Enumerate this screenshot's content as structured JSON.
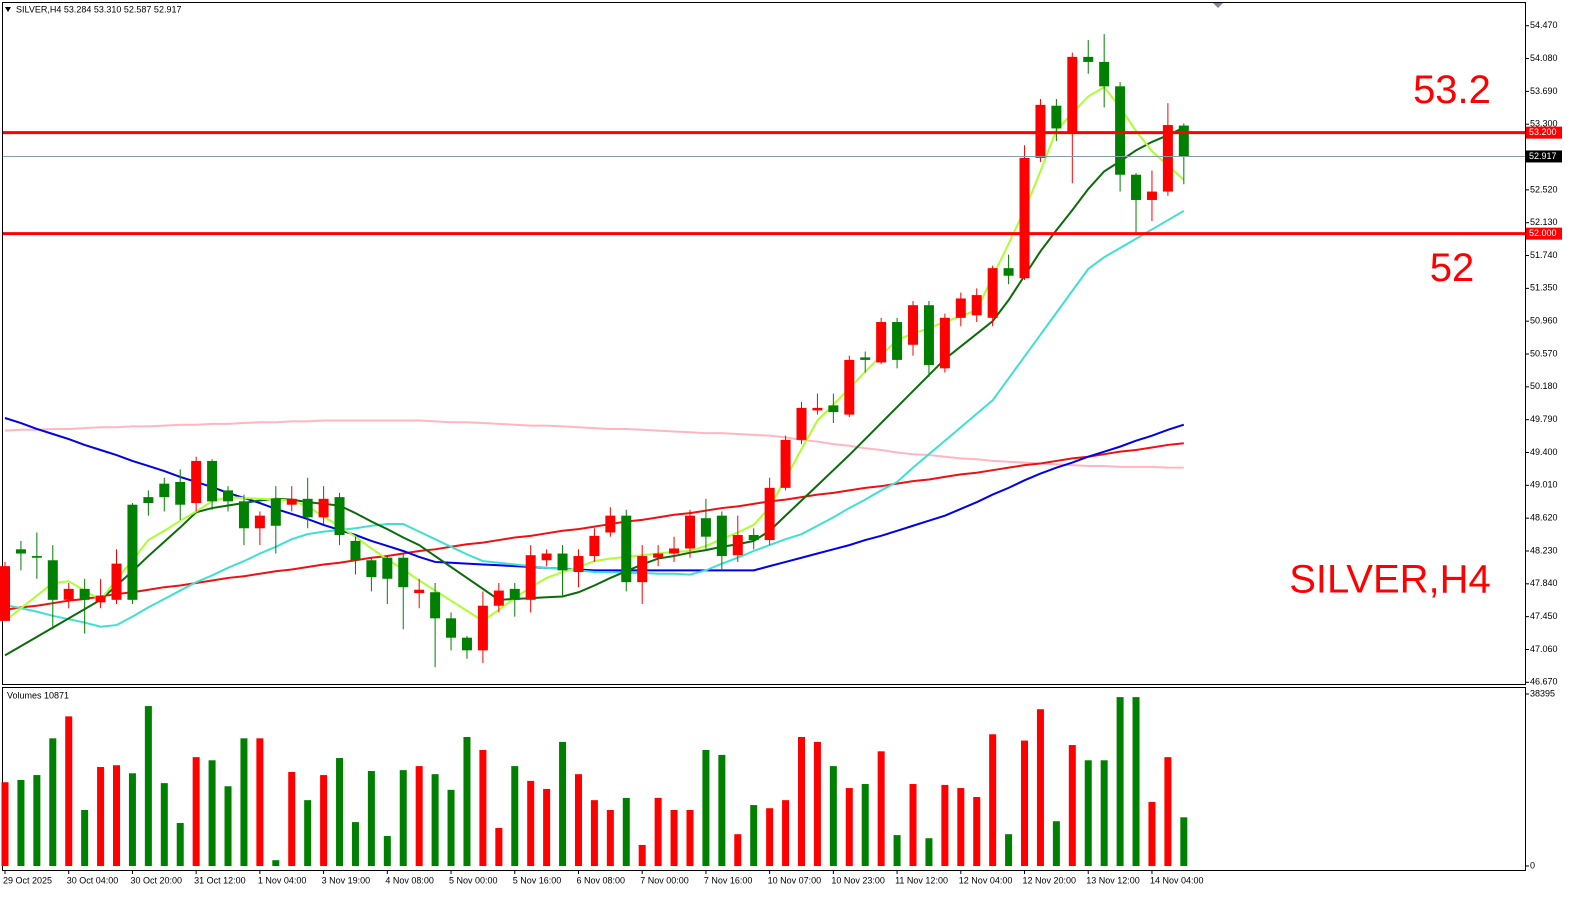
{
  "chart_data": [
    {
      "type": "candlestick",
      "header": "SILVER,H4  53.284 53.310 52.587 52.917",
      "symbol_label": "SILVER,H4",
      "categories": [
        "29 Oct 2025",
        null,
        null,
        null,
        "30 Oct 04:00",
        null,
        null,
        null,
        "30 Oct 20:00",
        null,
        null,
        null,
        "31 Oct 12:00",
        null,
        null,
        null,
        "1 Nov 04:00",
        null,
        null,
        null,
        "3 Nov 19:00",
        null,
        null,
        null,
        "4 Nov 08:00",
        null,
        null,
        null,
        "5 Nov 00:00",
        null,
        null,
        null,
        "5 Nov 16:00",
        null,
        null,
        null,
        "6 Nov 08:00",
        null,
        null,
        null,
        "7 Nov 00:00",
        null,
        null,
        null,
        "7 Nov 16:00",
        null,
        null,
        null,
        "10 Nov 07:00",
        null,
        null,
        null,
        "10 Nov 23:00",
        null,
        null,
        null,
        "11 Nov 12:00",
        null,
        null,
        null,
        "12 Nov 04:00",
        null,
        null,
        null,
        "12 Nov 20:00",
        null,
        null,
        null,
        "13 Nov 12:00",
        null,
        null,
        null,
        "14 Nov 04:00",
        null,
        null
      ],
      "open": [
        47.4,
        48.25,
        48.17,
        48.12,
        47.65,
        47.78,
        47.62,
        47.65,
        48.78,
        48.87,
        49.03,
        49.05,
        48.8,
        49.3,
        48.95,
        48.82,
        48.5,
        48.85,
        48.78,
        48.85,
        48.63,
        48.87,
        48.35,
        48.12,
        48.15,
        48.15,
        47.73,
        47.74,
        47.43,
        47.2,
        47.05,
        47.58,
        47.78,
        47.65,
        48.12,
        48.2,
        47.98,
        48.17,
        48.45,
        48.65,
        47.86,
        48.15,
        48.2,
        48.26,
        48.62,
        48.65,
        48.18,
        48.42,
        48.36,
        48.98,
        49.55,
        49.9,
        49.96,
        49.85,
        50.53,
        50.47,
        50.95,
        50.68,
        51.15,
        50.4,
        51.0,
        51.03,
        51.0,
        51.59,
        51.47,
        52.9,
        53.52,
        53.2,
        54.1,
        54.04,
        53.75,
        52.7,
        52.4,
        52.5,
        53.284
      ],
      "high": [
        48.1,
        48.35,
        48.45,
        48.3,
        47.85,
        47.9,
        47.9,
        48.25,
        48.8,
        48.95,
        49.1,
        49.2,
        49.35,
        49.32,
        49.0,
        48.9,
        48.7,
        49.0,
        49.0,
        49.1,
        49.0,
        48.92,
        48.4,
        48.15,
        48.18,
        48.2,
        47.9,
        47.85,
        47.5,
        47.22,
        47.75,
        47.85,
        47.85,
        48.3,
        48.25,
        48.3,
        48.25,
        48.5,
        48.75,
        48.72,
        48.3,
        48.3,
        48.4,
        48.72,
        48.85,
        48.7,
        48.65,
        48.5,
        49.1,
        49.6,
        50.0,
        50.1,
        50.1,
        50.55,
        50.6,
        51.0,
        51.0,
        51.2,
        51.2,
        51.05,
        51.3,
        51.35,
        51.62,
        51.75,
        53.05,
        53.6,
        53.6,
        54.15,
        54.3,
        54.37,
        53.8,
        52.72,
        52.75,
        53.55,
        53.31
      ],
      "low": [
        47.4,
        48.0,
        47.9,
        47.3,
        47.55,
        47.25,
        47.55,
        47.6,
        47.6,
        48.65,
        48.7,
        48.6,
        48.7,
        48.72,
        48.7,
        48.3,
        48.3,
        48.2,
        48.7,
        48.5,
        48.55,
        48.3,
        47.95,
        47.75,
        47.6,
        47.3,
        47.55,
        46.85,
        47.05,
        46.95,
        46.9,
        47.5,
        47.45,
        47.5,
        48.05,
        47.7,
        47.8,
        48.1,
        48.4,
        47.75,
        47.6,
        48.05,
        48.1,
        48.15,
        48.25,
        48.0,
        48.1,
        48.25,
        48.3,
        48.95,
        49.5,
        49.85,
        49.75,
        49.82,
        50.35,
        50.45,
        50.4,
        50.55,
        50.3,
        50.35,
        50.9,
        50.95,
        50.9,
        51.4,
        51.45,
        52.85,
        53.1,
        52.6,
        53.9,
        53.5,
        52.5,
        52.0,
        52.15,
        52.45,
        52.587
      ],
      "close": [
        48.05,
        48.2,
        48.15,
        47.65,
        47.78,
        47.65,
        47.7,
        48.08,
        47.65,
        48.8,
        48.87,
        48.78,
        49.3,
        48.82,
        48.82,
        48.5,
        48.65,
        48.53,
        48.85,
        48.63,
        48.85,
        48.42,
        48.12,
        47.92,
        47.9,
        47.8,
        47.77,
        47.43,
        47.2,
        47.05,
        47.58,
        47.76,
        47.65,
        48.18,
        48.2,
        48.0,
        48.17,
        48.41,
        48.65,
        47.86,
        48.17,
        48.2,
        48.26,
        48.65,
        48.4,
        48.17,
        48.42,
        48.36,
        48.98,
        49.55,
        49.93,
        49.93,
        49.88,
        50.5,
        50.5,
        50.95,
        50.5,
        51.15,
        50.44,
        51.0,
        51.23,
        51.27,
        51.59,
        51.5,
        52.9,
        53.53,
        53.25,
        54.1,
        54.04,
        53.75,
        52.7,
        52.4,
        52.5,
        53.29,
        52.917
      ],
      "up_color": "#ff0000",
      "down_color": "#008000",
      "moving_averages": [
        {
          "color": "#ffb6c1",
          "values": [
            49.66,
            49.67,
            49.67,
            49.68,
            49.68,
            49.69,
            49.7,
            49.7,
            49.71,
            49.71,
            49.72,
            49.73,
            49.73,
            49.74,
            49.74,
            49.75,
            49.76,
            49.76,
            49.77,
            49.77,
            49.78,
            49.78,
            49.78,
            49.78,
            49.78,
            49.78,
            49.78,
            49.77,
            49.76,
            49.76,
            49.75,
            49.74,
            49.73,
            49.72,
            49.72,
            49.71,
            49.7,
            49.69,
            49.68,
            49.68,
            49.67,
            49.66,
            49.65,
            49.64,
            49.63,
            49.63,
            49.62,
            49.61,
            49.6,
            49.58,
            49.55,
            49.53,
            49.5,
            49.48,
            49.45,
            49.43,
            49.4,
            49.38,
            49.37,
            49.35,
            49.33,
            49.32,
            49.3,
            49.29,
            49.28,
            49.27,
            49.26,
            49.25,
            49.24,
            49.24,
            49.23,
            49.23,
            49.23,
            49.22,
            49.22
          ]
        },
        {
          "color": "#ee1111",
          "values": [
            47.53,
            47.56,
            47.58,
            47.61,
            47.64,
            47.66,
            47.69,
            47.72,
            47.74,
            47.77,
            47.8,
            47.82,
            47.85,
            47.88,
            47.91,
            47.93,
            47.96,
            47.99,
            48.01,
            48.04,
            48.07,
            48.09,
            48.12,
            48.15,
            48.17,
            48.2,
            48.23,
            48.25,
            48.28,
            48.31,
            48.33,
            48.36,
            48.39,
            48.41,
            48.44,
            48.47,
            48.49,
            48.52,
            48.55,
            48.58,
            48.6,
            48.63,
            48.66,
            48.68,
            48.71,
            48.74,
            48.76,
            48.79,
            48.82,
            48.84,
            48.87,
            48.9,
            48.92,
            48.95,
            48.98,
            49.0,
            49.03,
            49.06,
            49.08,
            49.11,
            49.14,
            49.16,
            49.19,
            49.22,
            49.25,
            49.27,
            49.3,
            49.33,
            49.35,
            49.38,
            49.41,
            49.43,
            49.46,
            49.49,
            49.51
          ]
        },
        {
          "color": "#0000ee",
          "values": [
            49.81,
            49.75,
            49.68,
            49.62,
            49.56,
            49.49,
            49.43,
            49.37,
            49.3,
            49.24,
            49.18,
            49.11,
            49.05,
            48.99,
            48.92,
            48.86,
            48.8,
            48.73,
            48.67,
            48.61,
            48.54,
            48.48,
            48.42,
            48.35,
            48.29,
            48.23,
            48.16,
            48.1,
            48.09,
            48.08,
            48.07,
            48.06,
            48.05,
            48.04,
            48.03,
            48.02,
            48.01,
            48.0,
            48.0,
            48.0,
            48.0,
            48.0,
            48.0,
            48.0,
            48.0,
            48.0,
            48.0,
            48.0,
            48.05,
            48.1,
            48.15,
            48.2,
            48.25,
            48.3,
            48.36,
            48.41,
            48.47,
            48.53,
            48.59,
            48.65,
            48.73,
            48.81,
            48.9,
            48.98,
            49.07,
            49.15,
            49.22,
            49.28,
            49.35,
            49.41,
            49.47,
            49.54,
            49.6,
            49.67,
            49.73
          ]
        },
        {
          "color": "#40e0d0",
          "values": [
            47.59,
            47.55,
            47.51,
            47.46,
            47.42,
            47.38,
            47.33,
            47.35,
            47.45,
            47.56,
            47.66,
            47.76,
            47.86,
            47.94,
            48.03,
            48.11,
            48.2,
            48.28,
            48.37,
            48.43,
            48.46,
            48.48,
            48.5,
            48.53,
            48.55,
            48.55,
            48.46,
            48.37,
            48.28,
            48.19,
            48.11,
            48.09,
            48.07,
            48.05,
            48.03,
            48.02,
            48.0,
            47.98,
            47.98,
            47.97,
            47.97,
            47.96,
            47.96,
            47.95,
            48.0,
            48.08,
            48.15,
            48.23,
            48.3,
            48.37,
            48.43,
            48.53,
            48.63,
            48.74,
            48.84,
            48.95,
            49.05,
            49.22,
            49.38,
            49.54,
            49.7,
            49.86,
            50.02,
            50.28,
            50.54,
            50.8,
            51.06,
            51.32,
            51.58,
            51.72,
            51.83,
            51.94,
            52.05,
            52.16,
            52.27
          ]
        },
        {
          "color": "#0b6b0b",
          "values": [
            46.99,
            47.1,
            47.21,
            47.32,
            47.43,
            47.54,
            47.65,
            47.82,
            47.99,
            48.17,
            48.34,
            48.51,
            48.69,
            48.74,
            48.77,
            48.8,
            48.83,
            48.85,
            48.84,
            48.81,
            48.79,
            48.77,
            48.68,
            48.58,
            48.49,
            48.39,
            48.3,
            48.17,
            48.04,
            47.91,
            47.78,
            47.65,
            47.66,
            47.67,
            47.68,
            47.69,
            47.74,
            47.82,
            47.91,
            47.99,
            48.07,
            48.14,
            48.17,
            48.21,
            48.24,
            48.28,
            48.31,
            48.35,
            48.47,
            48.65,
            48.83,
            49.01,
            49.19,
            49.37,
            49.56,
            49.75,
            49.94,
            50.13,
            50.32,
            50.51,
            50.66,
            50.81,
            50.96,
            51.21,
            51.5,
            51.79,
            52.04,
            52.28,
            52.53,
            52.74,
            52.86,
            52.99,
            53.09,
            53.17,
            53.26
          ]
        },
        {
          "color": "#adff2f",
          "values": [
            47.4,
            47.55,
            47.7,
            47.85,
            47.87,
            47.76,
            47.65,
            47.89,
            48.12,
            48.36,
            48.47,
            48.59,
            48.7,
            48.82,
            48.87,
            48.86,
            48.85,
            48.84,
            48.83,
            48.76,
            48.64,
            48.52,
            48.4,
            48.26,
            48.13,
            48.01,
            47.88,
            47.76,
            47.64,
            47.52,
            47.4,
            47.53,
            47.67,
            47.8,
            47.91,
            47.98,
            48.04,
            48.11,
            48.14,
            48.16,
            48.18,
            48.2,
            48.22,
            48.23,
            48.29,
            48.37,
            48.45,
            48.54,
            48.75,
            49.09,
            49.44,
            49.78,
            49.97,
            50.16,
            50.36,
            50.55,
            50.74,
            50.81,
            50.88,
            50.95,
            51.02,
            51.09,
            51.49,
            51.88,
            52.28,
            52.74,
            53.23,
            53.43,
            53.63,
            53.74,
            53.5,
            53.22,
            52.98,
            52.81,
            52.64
          ]
        }
      ],
      "levels": [
        {
          "value": 53.2,
          "label": "53.200",
          "annotation": "53.2",
          "color": "#ff0000"
        },
        {
          "value": 52,
          "label": "52.000",
          "annotation": "52",
          "color": "#ff0000"
        }
      ],
      "current_price": 52.917,
      "ylim": [
        46.65,
        54.74
      ],
      "yticks": [
        {
          "value": 54.47,
          "label": "54.470"
        },
        {
          "value": 54.08,
          "label": "54.080"
        },
        {
          "value": 53.69,
          "label": "53.690"
        },
        {
          "value": 53.3,
          "label": "53.300"
        },
        {
          "value": 52.52,
          "label": "52.520"
        },
        {
          "value": 52.13,
          "label": "52.130"
        },
        {
          "value": 51.74,
          "label": "51.740"
        },
        {
          "value": 51.35,
          "label": "51.350"
        },
        {
          "value": 50.96,
          "label": "50.960"
        },
        {
          "value": 50.57,
          "label": "50.570"
        },
        {
          "value": 50.18,
          "label": "50.180"
        },
        {
          "value": 49.79,
          "label": "49.790"
        },
        {
          "value": 49.4,
          "label": "49.400"
        },
        {
          "value": 49.01,
          "label": "49.010"
        },
        {
          "value": 48.62,
          "label": "48.620"
        },
        {
          "value": 48.23,
          "label": "48.230"
        },
        {
          "value": 47.84,
          "label": "47.840"
        },
        {
          "value": 47.45,
          "label": "47.450"
        },
        {
          "value": 47.06,
          "label": "47.060"
        },
        {
          "value": 46.67,
          "label": "46.670"
        }
      ]
    },
    {
      "type": "bar",
      "title": "Volumes 10871",
      "values": [
        18700,
        19200,
        20300,
        28500,
        33400,
        12500,
        22100,
        22500,
        20700,
        35700,
        18500,
        9600,
        24300,
        23600,
        17800,
        28500,
        28500,
        1300,
        21000,
        14700,
        20300,
        24100,
        9800,
        21200,
        6700,
        21400,
        22300,
        20500,
        17000,
        28800,
        25900,
        8500,
        22300,
        19000,
        17200,
        27700,
        20500,
        14700,
        12500,
        15200,
        4700,
        15200,
        12500,
        12500,
        25900,
        24800,
        7100,
        13600,
        12900,
        14700,
        28800,
        27700,
        22300,
        17400,
        18300,
        25600,
        6900,
        18300,
        6200,
        18100,
        17400,
        15400,
        29400,
        7100,
        28000,
        35000,
        10000,
        27000,
        23600,
        23600,
        37700,
        37700,
        14300,
        24300,
        10871
      ],
      "ylim": [
        0,
        38395
      ],
      "yticks": [
        38395,
        0
      ]
    }
  ]
}
